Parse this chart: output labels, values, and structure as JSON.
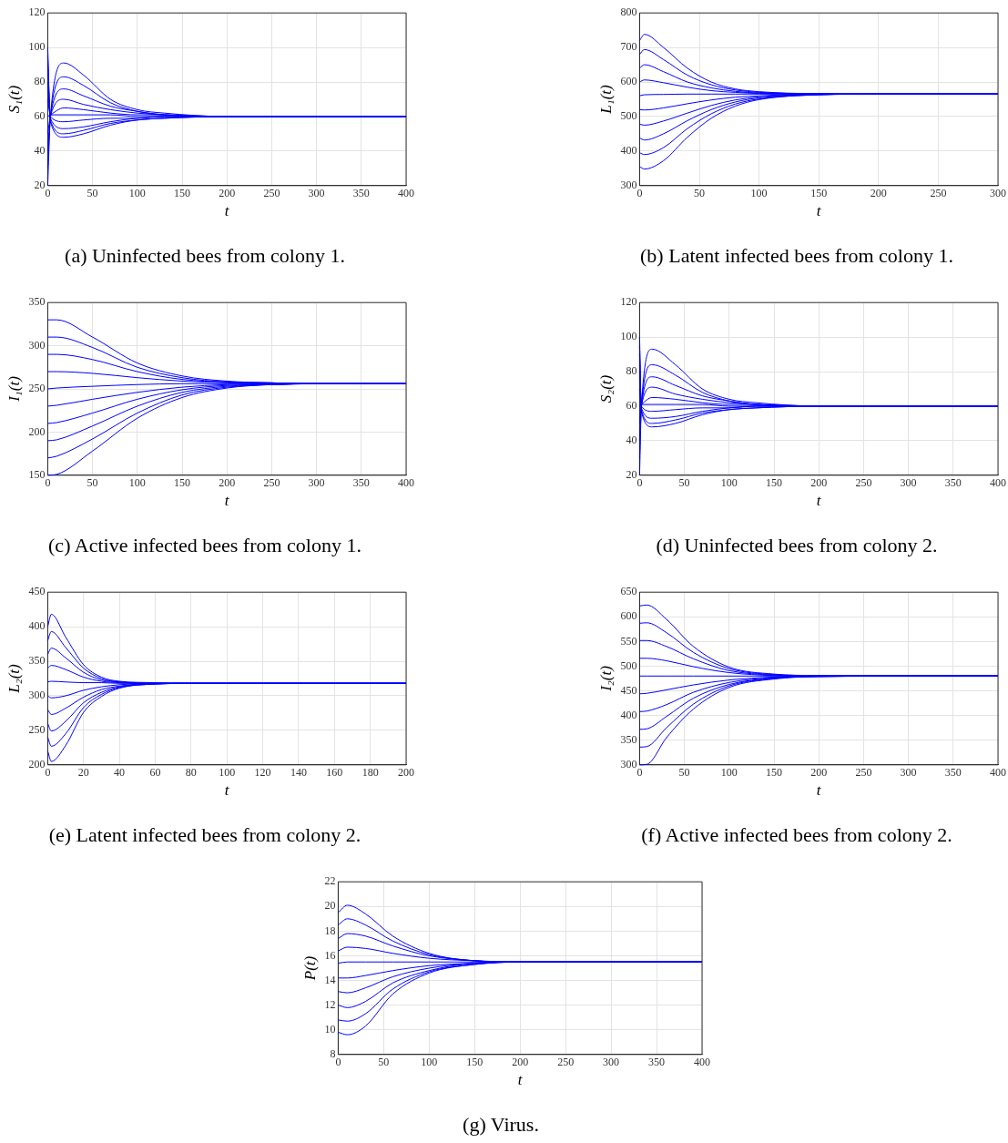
{
  "chart_data": [
    {
      "type": "line",
      "title": "(a) Uninfected bees from colony 1.",
      "xlabel": "t",
      "ylabel": "S₁(t)",
      "xlim": [
        0,
        400
      ],
      "ylim": [
        20,
        120
      ],
      "xticks": [
        0,
        50,
        100,
        150,
        200,
        250,
        300,
        350,
        400
      ],
      "yticks": [
        20,
        40,
        60,
        80,
        100,
        120
      ],
      "grid": true,
      "x": [
        0,
        3,
        18,
        40,
        70,
        100,
        130,
        200,
        300,
        400
      ],
      "series": [
        {
          "color": "#0000ff",
          "values": [
            20,
            60,
            91,
            84,
            70,
            64,
            62,
            60,
            60,
            60
          ]
        },
        {
          "color": "#0000ff",
          "values": [
            30,
            60,
            83,
            78,
            68,
            63,
            61,
            60,
            60,
            60
          ]
        },
        {
          "color": "#0000ff",
          "values": [
            40,
            60,
            76,
            72,
            66,
            63,
            61,
            60,
            60,
            60
          ]
        },
        {
          "color": "#0000ff",
          "values": [
            50,
            60,
            70,
            67,
            64,
            62,
            61,
            60,
            60,
            60
          ]
        },
        {
          "color": "#0000ff",
          "values": [
            60,
            61,
            65,
            64,
            62,
            61,
            61,
            60,
            60,
            60
          ]
        },
        {
          "color": "#0000ff",
          "values": [
            70,
            61,
            61,
            61,
            61,
            60,
            60,
            60,
            60,
            60
          ]
        },
        {
          "color": "#0000ff",
          "values": [
            80,
            60,
            57,
            58,
            59,
            59,
            60,
            60,
            60,
            60
          ]
        },
        {
          "color": "#0000ff",
          "values": [
            90,
            59,
            53,
            54,
            57,
            59,
            60,
            60,
            60,
            60
          ]
        },
        {
          "color": "#0000ff",
          "values": [
            95,
            58,
            50,
            52,
            56,
            58,
            59,
            60,
            60,
            60
          ]
        },
        {
          "color": "#0000ff",
          "values": [
            100,
            57,
            48,
            50,
            55,
            58,
            59,
            60,
            60,
            60
          ]
        }
      ]
    },
    {
      "type": "line",
      "title": "(b) Latent infected bees from colony 1.",
      "xlabel": "t",
      "ylabel": "L₁(t)",
      "xlim": [
        0,
        300
      ],
      "ylim": [
        300,
        800
      ],
      "xticks": [
        0,
        50,
        100,
        150,
        200,
        250,
        300
      ],
      "yticks": [
        300,
        400,
        500,
        600,
        700,
        800
      ],
      "grid": true,
      "x": [
        0,
        4,
        20,
        40,
        60,
        80,
        100,
        150,
        200,
        300
      ],
      "series": [
        {
          "color": "#0000ff",
          "values": [
            720,
            738,
            700,
            640,
            600,
            580,
            572,
            566,
            565,
            565
          ]
        },
        {
          "color": "#0000ff",
          "values": [
            680,
            694,
            665,
            620,
            592,
            577,
            570,
            566,
            565,
            565
          ]
        },
        {
          "color": "#0000ff",
          "values": [
            640,
            650,
            630,
            600,
            583,
            573,
            568,
            566,
            565,
            565
          ]
        },
        {
          "color": "#0000ff",
          "values": [
            600,
            606,
            598,
            585,
            575,
            570,
            567,
            565,
            565,
            565
          ]
        },
        {
          "color": "#0000ff",
          "values": [
            560,
            563,
            564,
            565,
            565,
            565,
            565,
            565,
            565,
            565
          ]
        },
        {
          "color": "#0000ff",
          "values": [
            520,
            519,
            525,
            537,
            548,
            556,
            560,
            565,
            565,
            565
          ]
        },
        {
          "color": "#0000ff",
          "values": [
            478,
            475,
            487,
            510,
            532,
            548,
            557,
            564,
            565,
            565
          ]
        },
        {
          "color": "#0000ff",
          "values": [
            438,
            432,
            450,
            488,
            520,
            542,
            554,
            564,
            565,
            565
          ]
        },
        {
          "color": "#0000ff",
          "values": [
            395,
            390,
            410,
            465,
            508,
            536,
            551,
            563,
            565,
            565
          ]
        },
        {
          "color": "#0000ff",
          "values": [
            355,
            348,
            372,
            440,
            495,
            530,
            549,
            563,
            565,
            565
          ]
        }
      ]
    },
    {
      "type": "line",
      "title": "(c) Active infected bees from colony 1.",
      "xlabel": "t",
      "ylabel": "I₁(t)",
      "xlim": [
        0,
        400
      ],
      "ylim": [
        150,
        350
      ],
      "xticks": [
        0,
        50,
        100,
        150,
        200,
        250,
        300,
        350,
        400
      ],
      "yticks": [
        150,
        200,
        250,
        300,
        350
      ],
      "grid": true,
      "x": [
        0,
        10,
        50,
        100,
        150,
        200,
        250,
        300,
        400
      ],
      "series": [
        {
          "color": "#0000ff",
          "values": [
            330,
            330,
            310,
            280,
            265,
            259,
            257,
            256,
            256
          ]
        },
        {
          "color": "#0000ff",
          "values": [
            310,
            310,
            298,
            275,
            263,
            258,
            257,
            256,
            256
          ]
        },
        {
          "color": "#0000ff",
          "values": [
            290,
            290,
            284,
            270,
            261,
            258,
            257,
            256,
            256
          ]
        },
        {
          "color": "#0000ff",
          "values": [
            270,
            270,
            268,
            263,
            259,
            257,
            256,
            256,
            256
          ]
        },
        {
          "color": "#0000ff",
          "values": [
            250,
            251,
            253,
            255,
            256,
            256,
            256,
            256,
            256
          ]
        },
        {
          "color": "#0000ff",
          "values": [
            230,
            231,
            238,
            246,
            252,
            255,
            256,
            256,
            256
          ]
        },
        {
          "color": "#0000ff",
          "values": [
            210,
            211,
            222,
            238,
            249,
            254,
            255,
            256,
            256
          ]
        },
        {
          "color": "#0000ff",
          "values": [
            190,
            191,
            207,
            230,
            246,
            253,
            255,
            256,
            256
          ]
        },
        {
          "color": "#0000ff",
          "values": [
            170,
            172,
            192,
            222,
            243,
            252,
            255,
            256,
            256
          ]
        },
        {
          "color": "#0000ff",
          "values": [
            150,
            151,
            178,
            216,
            240,
            251,
            255,
            256,
            256
          ]
        }
      ]
    },
    {
      "type": "line",
      "title": "(d) Uninfected bees from colony 2.",
      "xlabel": "t",
      "ylabel": "S₂(t)",
      "xlim": [
        0,
        400
      ],
      "ylim": [
        20,
        120
      ],
      "xticks": [
        0,
        50,
        100,
        150,
        200,
        250,
        300,
        350,
        400
      ],
      "yticks": [
        20,
        40,
        60,
        80,
        100,
        120
      ],
      "grid": true,
      "x": [
        0,
        2,
        14,
        40,
        70,
        100,
        130,
        200,
        300,
        400
      ],
      "series": [
        {
          "color": "#0000ff",
          "values": [
            20,
            60,
            93,
            84,
            70,
            64,
            62,
            60,
            60,
            60
          ]
        },
        {
          "color": "#0000ff",
          "values": [
            30,
            60,
            84,
            78,
            68,
            63,
            61,
            60,
            60,
            60
          ]
        },
        {
          "color": "#0000ff",
          "values": [
            40,
            60,
            77,
            72,
            66,
            63,
            61,
            60,
            60,
            60
          ]
        },
        {
          "color": "#0000ff",
          "values": [
            50,
            60,
            71,
            67,
            64,
            62,
            61,
            60,
            60,
            60
          ]
        },
        {
          "color": "#0000ff",
          "values": [
            60,
            61,
            65,
            64,
            62,
            61,
            61,
            60,
            60,
            60
          ]
        },
        {
          "color": "#0000ff",
          "values": [
            70,
            61,
            61,
            61,
            61,
            60,
            60,
            60,
            60,
            60
          ]
        },
        {
          "color": "#0000ff",
          "values": [
            80,
            60,
            57,
            58,
            59,
            59,
            60,
            60,
            60,
            60
          ]
        },
        {
          "color": "#0000ff",
          "values": [
            90,
            59,
            53,
            54,
            57,
            59,
            60,
            60,
            60,
            60
          ]
        },
        {
          "color": "#0000ff",
          "values": [
            95,
            58,
            50,
            52,
            56,
            58,
            59,
            60,
            60,
            60
          ]
        },
        {
          "color": "#0000ff",
          "values": [
            100,
            57,
            48,
            50,
            55,
            58,
            59,
            60,
            60,
            60
          ]
        }
      ]
    },
    {
      "type": "line",
      "title": "(e) Latent infected bees from colony 2.",
      "xlabel": "t",
      "ylabel": "L₂(t)",
      "xlim": [
        0,
        200
      ],
      "ylim": [
        200,
        450
      ],
      "xticks": [
        0,
        20,
        40,
        60,
        80,
        100,
        120,
        140,
        160,
        180,
        200
      ],
      "yticks": [
        200,
        250,
        300,
        350,
        400,
        450
      ],
      "grid": true,
      "x": [
        0,
        2,
        10,
        20,
        30,
        40,
        60,
        80,
        100,
        200
      ],
      "series": [
        {
          "color": "#0000ff",
          "values": [
            400,
            418,
            385,
            345,
            327,
            321,
            319,
            318,
            318,
            318
          ]
        },
        {
          "color": "#0000ff",
          "values": [
            380,
            393,
            370,
            340,
            325,
            320,
            318,
            318,
            318,
            318
          ]
        },
        {
          "color": "#0000ff",
          "values": [
            360,
            369,
            355,
            334,
            323,
            320,
            318,
            318,
            318,
            318
          ]
        },
        {
          "color": "#0000ff",
          "values": [
            340,
            344,
            338,
            327,
            321,
            319,
            318,
            318,
            318,
            318
          ]
        },
        {
          "color": "#0000ff",
          "values": [
            320,
            321,
            320,
            319,
            319,
            318,
            318,
            318,
            318,
            318
          ]
        },
        {
          "color": "#0000ff",
          "values": [
            300,
            297,
            300,
            308,
            313,
            316,
            318,
            318,
            318,
            318
          ]
        },
        {
          "color": "#0000ff",
          "values": [
            280,
            273,
            282,
            298,
            309,
            314,
            318,
            318,
            318,
            318
          ]
        },
        {
          "color": "#0000ff",
          "values": [
            260,
            249,
            263,
            290,
            305,
            313,
            317,
            318,
            318,
            318
          ]
        },
        {
          "color": "#0000ff",
          "values": [
            240,
            227,
            245,
            283,
            302,
            312,
            317,
            318,
            318,
            318
          ]
        },
        {
          "color": "#0000ff",
          "values": [
            220,
            205,
            228,
            276,
            299,
            311,
            317,
            318,
            318,
            318
          ]
        }
      ]
    },
    {
      "type": "line",
      "title": "(f) Active infected bees from colony 2.",
      "xlabel": "t",
      "ylabel": "I₂(t)",
      "xlim": [
        0,
        400
      ],
      "ylim": [
        300,
        650
      ],
      "xticks": [
        0,
        50,
        100,
        150,
        200,
        250,
        300,
        350,
        400
      ],
      "yticks": [
        300,
        350,
        400,
        450,
        500,
        550,
        600,
        650
      ],
      "grid": true,
      "x": [
        0,
        8,
        30,
        60,
        100,
        150,
        200,
        300,
        400
      ],
      "series": [
        {
          "color": "#0000ff",
          "values": [
            622,
            624,
            595,
            540,
            498,
            484,
            481,
            480,
            480
          ]
        },
        {
          "color": "#0000ff",
          "values": [
            587,
            588,
            568,
            528,
            495,
            483,
            481,
            480,
            480
          ]
        },
        {
          "color": "#0000ff",
          "values": [
            552,
            552,
            540,
            515,
            491,
            482,
            480,
            480,
            480
          ]
        },
        {
          "color": "#0000ff",
          "values": [
            516,
            516,
            511,
            499,
            487,
            481,
            480,
            480,
            480
          ]
        },
        {
          "color": "#0000ff",
          "values": [
            480,
            480,
            480,
            480,
            480,
            480,
            480,
            480,
            480
          ]
        },
        {
          "color": "#0000ff",
          "values": [
            444,
            445,
            452,
            462,
            472,
            478,
            480,
            480,
            480
          ]
        },
        {
          "color": "#0000ff",
          "values": [
            408,
            409,
            422,
            447,
            467,
            477,
            480,
            480,
            480
          ]
        },
        {
          "color": "#0000ff",
          "values": [
            372,
            373,
            398,
            435,
            463,
            476,
            479,
            480,
            480
          ]
        },
        {
          "color": "#0000ff",
          "values": [
            336,
            337,
            375,
            423,
            460,
            475,
            479,
            480,
            480
          ]
        },
        {
          "color": "#0000ff",
          "values": [
            300,
            301,
            355,
            413,
            457,
            474,
            479,
            480,
            480
          ]
        }
      ]
    },
    {
      "type": "line",
      "title": "(g) Virus.",
      "xlabel": "t",
      "ylabel": "P(t)",
      "xlim": [
        0,
        400
      ],
      "ylim": [
        8,
        22
      ],
      "xticks": [
        0,
        50,
        100,
        150,
        200,
        250,
        300,
        350,
        400
      ],
      "yticks": [
        8,
        10,
        12,
        14,
        16,
        18,
        20,
        22
      ],
      "grid": true,
      "x": [
        0,
        10,
        30,
        60,
        100,
        150,
        200,
        300,
        400
      ],
      "series": [
        {
          "color": "#0000ff",
          "values": [
            19.5,
            20.1,
            19.4,
            17.6,
            16.2,
            15.6,
            15.5,
            15.5,
            15.5
          ]
        },
        {
          "color": "#0000ff",
          "values": [
            18.5,
            19,
            18.5,
            17.2,
            16.1,
            15.6,
            15.5,
            15.5,
            15.5
          ]
        },
        {
          "color": "#0000ff",
          "values": [
            17.4,
            17.8,
            17.6,
            16.8,
            16,
            15.6,
            15.5,
            15.5,
            15.5
          ]
        },
        {
          "color": "#0000ff",
          "values": [
            16.4,
            16.7,
            16.6,
            16.2,
            15.8,
            15.6,
            15.5,
            15.5,
            15.5
          ]
        },
        {
          "color": "#0000ff",
          "values": [
            15.4,
            15.5,
            15.5,
            15.5,
            15.5,
            15.5,
            15.5,
            15.5,
            15.5
          ]
        },
        {
          "color": "#0000ff",
          "values": [
            14.2,
            14.2,
            14.4,
            14.8,
            15.2,
            15.4,
            15.5,
            15.5,
            15.5
          ]
        },
        {
          "color": "#0000ff",
          "values": [
            13.1,
            13,
            13.4,
            14.3,
            15,
            15.4,
            15.5,
            15.5,
            15.5
          ]
        },
        {
          "color": "#0000ff",
          "values": [
            12,
            11.8,
            12.3,
            13.8,
            14.8,
            15.4,
            15.5,
            15.5,
            15.5
          ]
        },
        {
          "color": "#0000ff",
          "values": [
            10.8,
            10.7,
            11.3,
            13.3,
            14.7,
            15.3,
            15.5,
            15.5,
            15.5
          ]
        },
        {
          "color": "#0000ff",
          "values": [
            9.8,
            9.6,
            10.3,
            12.9,
            14.6,
            15.3,
            15.5,
            15.5,
            15.5
          ]
        }
      ]
    }
  ]
}
